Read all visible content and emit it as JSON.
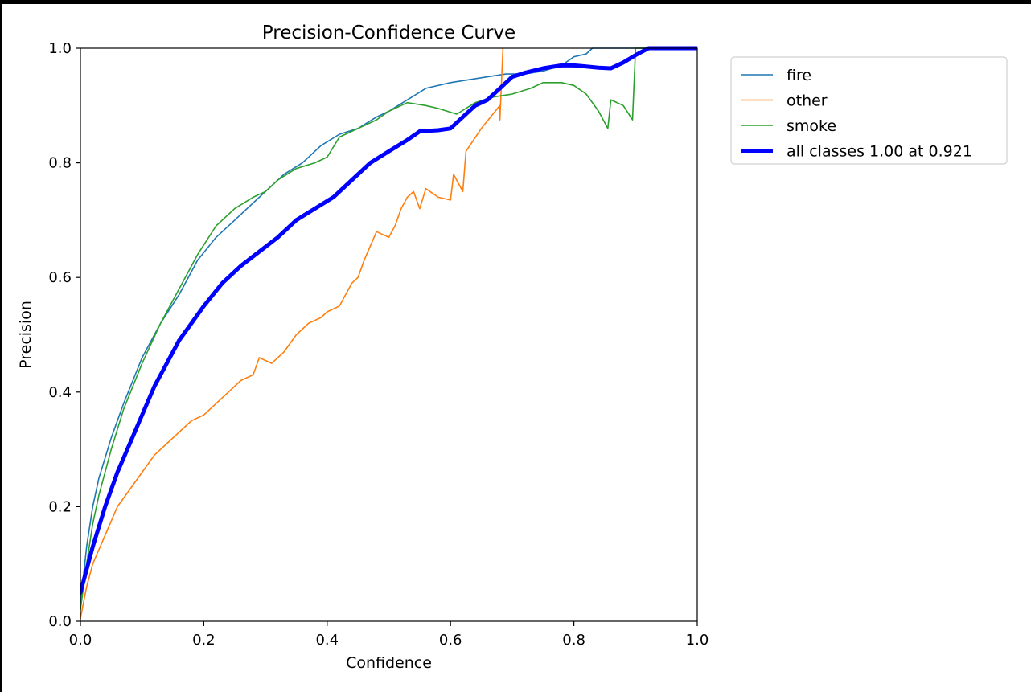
{
  "chart_data": {
    "type": "line",
    "title": "Precision-Confidence Curve",
    "xlabel": "Confidence",
    "ylabel": "Precision",
    "xlim": [
      0,
      1
    ],
    "ylim": [
      0,
      1
    ],
    "xticks": [
      "0.0",
      "0.2",
      "0.4",
      "0.6",
      "0.8",
      "1.0"
    ],
    "yticks": [
      "0.0",
      "0.2",
      "0.4",
      "0.6",
      "0.8",
      "1.0"
    ],
    "grid": false,
    "legend_position": "outside-top-right",
    "series": [
      {
        "name": "fire",
        "color": "#1f77b4",
        "points": [
          [
            0,
            0.03
          ],
          [
            0.01,
            0.13
          ],
          [
            0.02,
            0.2
          ],
          [
            0.03,
            0.25
          ],
          [
            0.05,
            0.32
          ],
          [
            0.07,
            0.38
          ],
          [
            0.1,
            0.46
          ],
          [
            0.13,
            0.52
          ],
          [
            0.16,
            0.57
          ],
          [
            0.19,
            0.63
          ],
          [
            0.22,
            0.67
          ],
          [
            0.25,
            0.7
          ],
          [
            0.28,
            0.73
          ],
          [
            0.3,
            0.75
          ],
          [
            0.33,
            0.78
          ],
          [
            0.36,
            0.8
          ],
          [
            0.39,
            0.83
          ],
          [
            0.42,
            0.85
          ],
          [
            0.45,
            0.86
          ],
          [
            0.48,
            0.88
          ],
          [
            0.5,
            0.89
          ],
          [
            0.53,
            0.91
          ],
          [
            0.56,
            0.93
          ],
          [
            0.6,
            0.94
          ],
          [
            0.63,
            0.945
          ],
          [
            0.66,
            0.95
          ],
          [
            0.69,
            0.955
          ],
          [
            0.72,
            0.955
          ],
          [
            0.75,
            0.96
          ],
          [
            0.78,
            0.97
          ],
          [
            0.8,
            0.985
          ],
          [
            0.82,
            0.99
          ],
          [
            0.83,
            1.0
          ],
          [
            1.0,
            1.0
          ]
        ]
      },
      {
        "name": "other",
        "color": "#ff7f0e",
        "points": [
          [
            0,
            0.005
          ],
          [
            0.01,
            0.06
          ],
          [
            0.02,
            0.1
          ],
          [
            0.04,
            0.15
          ],
          [
            0.06,
            0.2
          ],
          [
            0.08,
            0.23
          ],
          [
            0.1,
            0.26
          ],
          [
            0.12,
            0.29
          ],
          [
            0.14,
            0.31
          ],
          [
            0.16,
            0.33
          ],
          [
            0.18,
            0.35
          ],
          [
            0.2,
            0.36
          ],
          [
            0.22,
            0.38
          ],
          [
            0.24,
            0.4
          ],
          [
            0.26,
            0.42
          ],
          [
            0.28,
            0.43
          ],
          [
            0.29,
            0.46
          ],
          [
            0.31,
            0.45
          ],
          [
            0.33,
            0.47
          ],
          [
            0.35,
            0.5
          ],
          [
            0.37,
            0.52
          ],
          [
            0.39,
            0.53
          ],
          [
            0.4,
            0.54
          ],
          [
            0.42,
            0.55
          ],
          [
            0.44,
            0.59
          ],
          [
            0.45,
            0.6
          ],
          [
            0.46,
            0.63
          ],
          [
            0.48,
            0.68
          ],
          [
            0.5,
            0.67
          ],
          [
            0.51,
            0.69
          ],
          [
            0.52,
            0.72
          ],
          [
            0.53,
            0.74
          ],
          [
            0.54,
            0.75
          ],
          [
            0.55,
            0.72
          ],
          [
            0.56,
            0.755
          ],
          [
            0.58,
            0.74
          ],
          [
            0.6,
            0.735
          ],
          [
            0.605,
            0.78
          ],
          [
            0.62,
            0.75
          ],
          [
            0.625,
            0.82
          ],
          [
            0.65,
            0.86
          ],
          [
            0.68,
            0.9
          ],
          [
            0.68,
            0.875
          ],
          [
            0.685,
            1.0
          ]
        ]
      },
      {
        "name": "smoke",
        "color": "#2ca02c",
        "points": [
          [
            0,
            0.02
          ],
          [
            0.01,
            0.1
          ],
          [
            0.02,
            0.17
          ],
          [
            0.03,
            0.22
          ],
          [
            0.05,
            0.3
          ],
          [
            0.07,
            0.37
          ],
          [
            0.1,
            0.45
          ],
          [
            0.13,
            0.52
          ],
          [
            0.16,
            0.58
          ],
          [
            0.19,
            0.64
          ],
          [
            0.22,
            0.69
          ],
          [
            0.25,
            0.72
          ],
          [
            0.28,
            0.74
          ],
          [
            0.3,
            0.75
          ],
          [
            0.32,
            0.77
          ],
          [
            0.35,
            0.79
          ],
          [
            0.38,
            0.8
          ],
          [
            0.4,
            0.81
          ],
          [
            0.42,
            0.845
          ],
          [
            0.45,
            0.86
          ],
          [
            0.48,
            0.875
          ],
          [
            0.5,
            0.89
          ],
          [
            0.53,
            0.905
          ],
          [
            0.56,
            0.9
          ],
          [
            0.58,
            0.895
          ],
          [
            0.61,
            0.885
          ],
          [
            0.64,
            0.905
          ],
          [
            0.67,
            0.915
          ],
          [
            0.7,
            0.92
          ],
          [
            0.73,
            0.93
          ],
          [
            0.75,
            0.94
          ],
          [
            0.78,
            0.94
          ],
          [
            0.8,
            0.935
          ],
          [
            0.82,
            0.92
          ],
          [
            0.84,
            0.89
          ],
          [
            0.855,
            0.86
          ],
          [
            0.86,
            0.91
          ],
          [
            0.88,
            0.9
          ],
          [
            0.895,
            0.875
          ],
          [
            0.9,
            1.0
          ],
          [
            1.0,
            1.0
          ]
        ]
      },
      {
        "name": "all classes 1.00 at 0.921",
        "color": "#0000ff",
        "points": [
          [
            0,
            0.05
          ],
          [
            0.02,
            0.13
          ],
          [
            0.04,
            0.2
          ],
          [
            0.06,
            0.26
          ],
          [
            0.08,
            0.31
          ],
          [
            0.1,
            0.36
          ],
          [
            0.12,
            0.41
          ],
          [
            0.14,
            0.45
          ],
          [
            0.16,
            0.49
          ],
          [
            0.18,
            0.52
          ],
          [
            0.2,
            0.55
          ],
          [
            0.23,
            0.59
          ],
          [
            0.26,
            0.62
          ],
          [
            0.29,
            0.645
          ],
          [
            0.32,
            0.67
          ],
          [
            0.35,
            0.7
          ],
          [
            0.38,
            0.72
          ],
          [
            0.41,
            0.74
          ],
          [
            0.44,
            0.77
          ],
          [
            0.47,
            0.8
          ],
          [
            0.5,
            0.82
          ],
          [
            0.53,
            0.84
          ],
          [
            0.55,
            0.855
          ],
          [
            0.58,
            0.857
          ],
          [
            0.6,
            0.86
          ],
          [
            0.62,
            0.88
          ],
          [
            0.64,
            0.9
          ],
          [
            0.66,
            0.91
          ],
          [
            0.68,
            0.93
          ],
          [
            0.7,
            0.95
          ],
          [
            0.72,
            0.957
          ],
          [
            0.75,
            0.965
          ],
          [
            0.78,
            0.97
          ],
          [
            0.8,
            0.97
          ],
          [
            0.82,
            0.968
          ],
          [
            0.84,
            0.966
          ],
          [
            0.86,
            0.965
          ],
          [
            0.88,
            0.975
          ],
          [
            0.9,
            0.988
          ],
          [
            0.921,
            1.0
          ],
          [
            1.0,
            1.0
          ]
        ]
      }
    ]
  }
}
